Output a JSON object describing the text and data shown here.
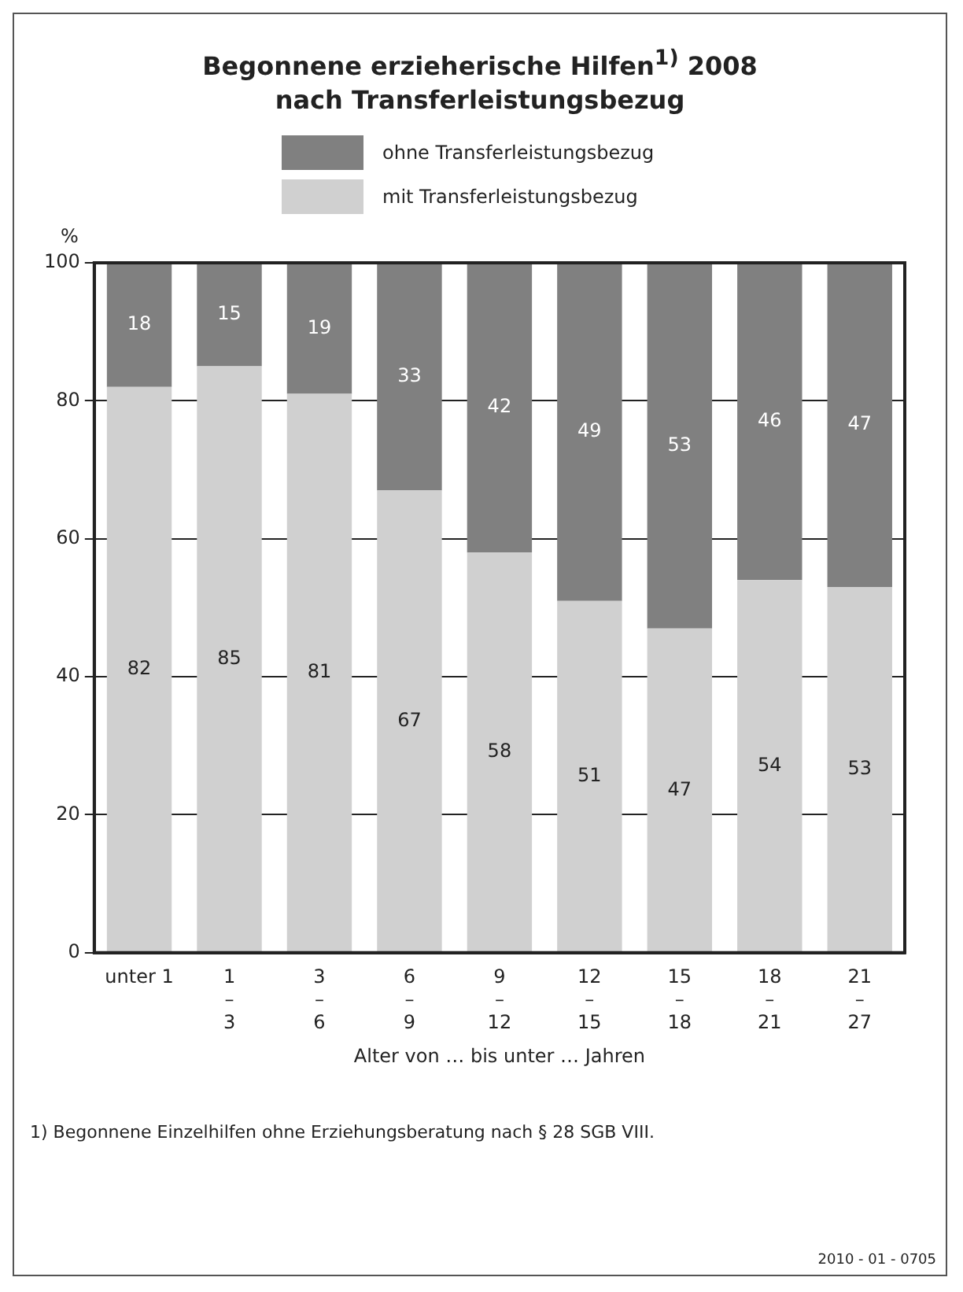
{
  "chart_data": {
    "type": "bar",
    "title": "Begonnene erzieherische Hilfen$^{1)}$ 2008\nnach Transferleistungsbezug",
    "xlabel": "Alter von … bis unter … Jahren",
    "ylabel": "%",
    "categories": [
      "unter 1",
      "1\n–\n3",
      "3\n–\n6",
      "6\n–\n9",
      "9\n–\n12",
      "12\n–\n15",
      "15\n–\n18",
      "18\n–\n21",
      "21\n–\n27"
    ],
    "series": [
      {
        "name": "mit Transferleistungsbezug",
        "color": "#d0d0d0",
        "values": [
          82,
          85,
          81,
          67,
          58,
          51,
          47,
          54,
          53
        ]
      },
      {
        "name": "ohne Transferleistungsbezug",
        "color": "#808080",
        "values": [
          18,
          15,
          19,
          33,
          42,
          49,
          53,
          46,
          47
        ]
      }
    ],
    "stacked": true,
    "ylim": [
      0,
      100
    ],
    "yticks": [
      0,
      20,
      40,
      60,
      80,
      100
    ],
    "grid": "y",
    "legend": "top",
    "data_labels": true,
    "annotations": [
      "1) Begonnene Einzelhilfen ohne Erziehungsberatung nach § 28 SGB VIII.",
      "2010 - 01 - 0705"
    ]
  }
}
